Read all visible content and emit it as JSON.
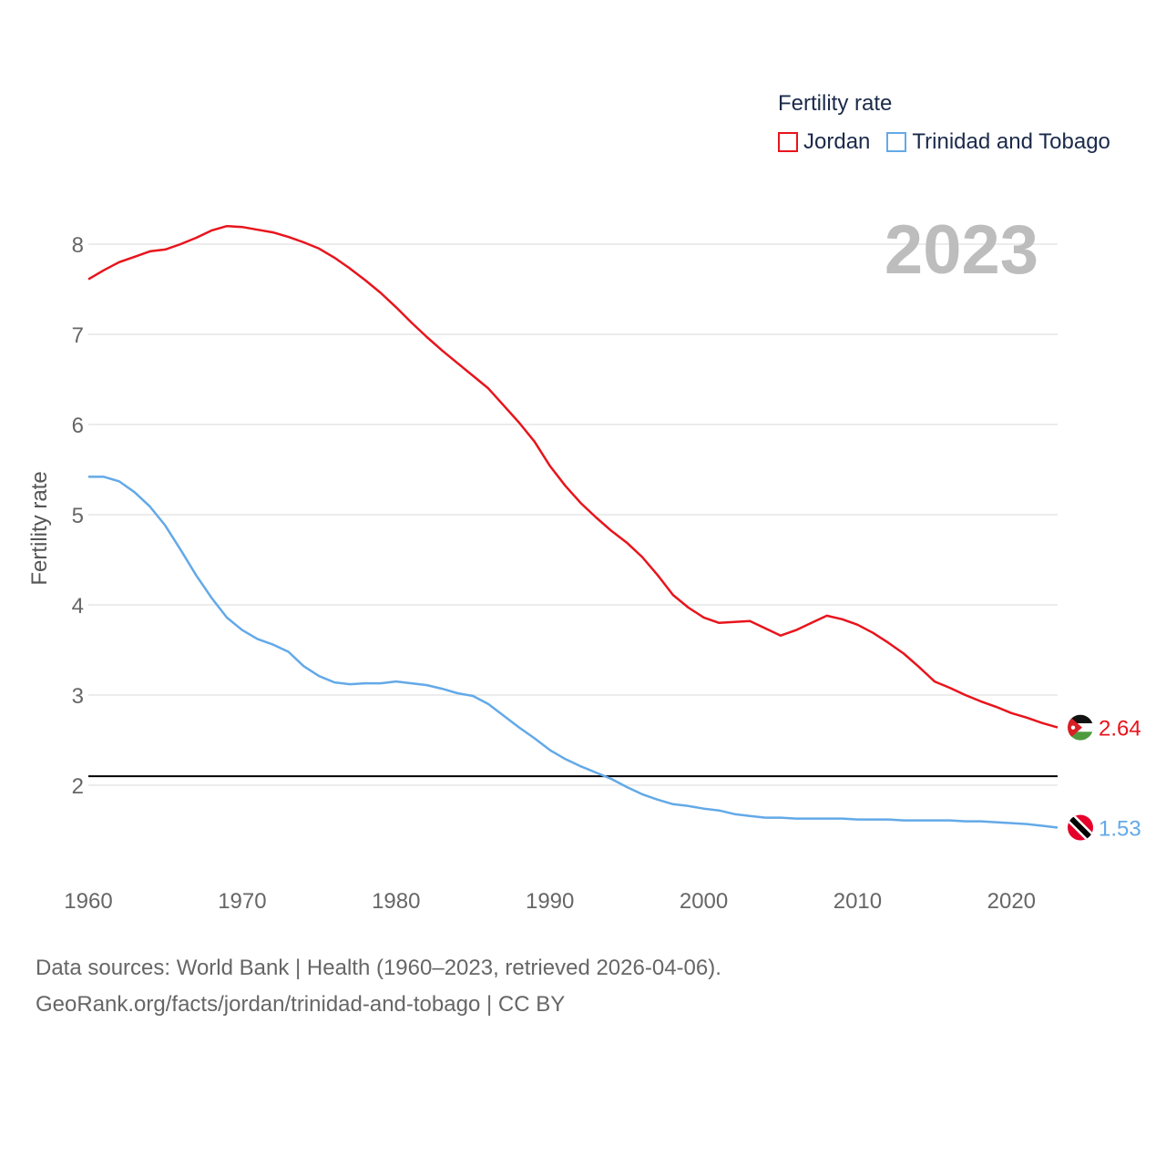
{
  "legend": {
    "title": "Fertility rate"
  },
  "footer": {
    "line1": "Data sources: World Bank | Health (1960–2023, retrieved 2026-04-06).",
    "line2": "GeoRank.org/facts/jordan/trinidad-and-tobago | CC BY"
  },
  "chart_data": {
    "type": "line",
    "ylabel": "Fertility rate",
    "xlabel": "",
    "year_label": "2023",
    "xlim": [
      1960,
      2023
    ],
    "ylim": [
      1.0,
      8.6
    ],
    "x_ticks": [
      1960,
      1970,
      1980,
      1990,
      2000,
      2010,
      2020
    ],
    "y_ticks": [
      2,
      3,
      4,
      5,
      6,
      7,
      8
    ],
    "reference_line": 2.1,
    "x": [
      1960,
      1961,
      1962,
      1963,
      1964,
      1965,
      1966,
      1967,
      1968,
      1969,
      1970,
      1971,
      1972,
      1973,
      1974,
      1975,
      1976,
      1977,
      1978,
      1979,
      1980,
      1981,
      1982,
      1983,
      1984,
      1985,
      1986,
      1987,
      1988,
      1989,
      1990,
      1991,
      1992,
      1993,
      1994,
      1995,
      1996,
      1997,
      1998,
      1999,
      2000,
      2001,
      2002,
      2003,
      2004,
      2005,
      2006,
      2007,
      2008,
      2009,
      2010,
      2011,
      2012,
      2013,
      2014,
      2015,
      2016,
      2017,
      2018,
      2019,
      2020,
      2021,
      2022,
      2023
    ],
    "series": [
      {
        "name": "Jordan",
        "color": "#e8141c",
        "end_label": "2.64",
        "values": [
          7.61,
          7.71,
          7.8,
          7.86,
          7.92,
          7.94,
          8.0,
          8.07,
          8.15,
          8.2,
          8.19,
          8.16,
          8.13,
          8.08,
          8.02,
          7.95,
          7.85,
          7.73,
          7.6,
          7.46,
          7.3,
          7.13,
          6.97,
          6.82,
          6.68,
          6.54,
          6.4,
          6.21,
          6.02,
          5.81,
          5.54,
          5.32,
          5.13,
          4.97,
          4.82,
          4.69,
          4.53,
          4.33,
          4.11,
          3.97,
          3.86,
          3.8,
          3.81,
          3.82,
          3.74,
          3.66,
          3.72,
          3.8,
          3.88,
          3.84,
          3.78,
          3.69,
          3.58,
          3.46,
          3.31,
          3.15,
          3.08,
          3.0,
          2.93,
          2.87,
          2.8,
          2.75,
          2.69,
          2.64
        ]
      },
      {
        "name": "Trinidad and Tobago",
        "color": "#63a9e8",
        "end_label": "1.53",
        "values": [
          5.42,
          5.42,
          5.37,
          5.25,
          5.09,
          4.88,
          4.61,
          4.33,
          4.08,
          3.86,
          3.72,
          3.62,
          3.56,
          3.48,
          3.32,
          3.21,
          3.14,
          3.12,
          3.13,
          3.13,
          3.15,
          3.13,
          3.11,
          3.07,
          3.02,
          2.99,
          2.9,
          2.77,
          2.64,
          2.52,
          2.39,
          2.29,
          2.21,
          2.14,
          2.07,
          1.98,
          1.9,
          1.84,
          1.79,
          1.77,
          1.74,
          1.72,
          1.68,
          1.66,
          1.64,
          1.64,
          1.63,
          1.63,
          1.63,
          1.63,
          1.62,
          1.62,
          1.62,
          1.61,
          1.61,
          1.61,
          1.61,
          1.6,
          1.6,
          1.59,
          1.58,
          1.57,
          1.55,
          1.53
        ]
      }
    ]
  },
  "flags": {
    "jordan": {
      "black": "#111111",
      "white": "#ffffff",
      "green": "#4f9a3f",
      "red": "#d81f26"
    },
    "trinidad": {
      "red": "#e4002b",
      "white": "#ffffff",
      "black": "#000000"
    }
  }
}
